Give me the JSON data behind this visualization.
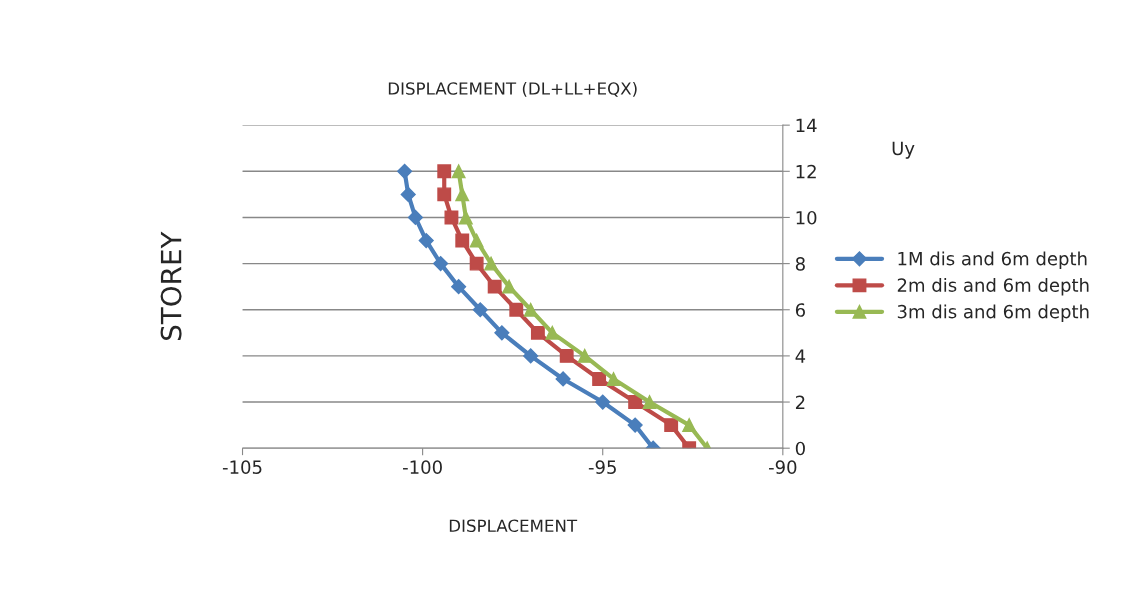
{
  "chart_data": {
    "type": "line",
    "title": "DISPLACEMENT (DL+LL+EQX)",
    "xlabel": "DISPLACEMENT",
    "ylabel": "STOREY",
    "annotations": [
      "Uy"
    ],
    "xlim": [
      -105,
      -90
    ],
    "xticks": [
      -105,
      -100,
      -95,
      -90
    ],
    "ylim": [
      0,
      14
    ],
    "yticks": [
      0,
      2,
      4,
      6,
      8,
      10,
      12,
      14
    ],
    "grid": "y",
    "legend": "right",
    "series": [
      {
        "name": "1M dis and 6m depth",
        "color": "#4a7ebb",
        "marker": "diamond",
        "x": [
          -93.6,
          -94.1,
          -95.0,
          -96.1,
          -97.0,
          -97.8,
          -98.4,
          -99.0,
          -99.5,
          -99.9,
          -100.2,
          -100.4,
          -100.5
        ],
        "values": [
          0,
          1,
          2,
          3,
          4,
          5,
          6,
          7,
          8,
          9,
          10,
          11,
          12
        ]
      },
      {
        "name": "2m dis and 6m depth",
        "color": "#be4b48",
        "marker": "square",
        "x": [
          -92.6,
          -93.1,
          -94.1,
          -95.1,
          -96.0,
          -96.8,
          -97.4,
          -98.0,
          -98.5,
          -98.9,
          -99.2,
          -99.4,
          -99.4
        ],
        "values": [
          0,
          1,
          2,
          3,
          4,
          5,
          6,
          7,
          8,
          9,
          10,
          11,
          12
        ]
      },
      {
        "name": "3m dis and 6m depth",
        "color": "#98b954",
        "marker": "triangle",
        "x": [
          -92.1,
          -92.6,
          -93.7,
          -94.7,
          -95.5,
          -96.4,
          -97.0,
          -97.6,
          -98.1,
          -98.5,
          -98.8,
          -98.9,
          -99.0
        ],
        "values": [
          0,
          1,
          2,
          3,
          4,
          5,
          6,
          7,
          8,
          9,
          10,
          11,
          12
        ]
      }
    ]
  }
}
